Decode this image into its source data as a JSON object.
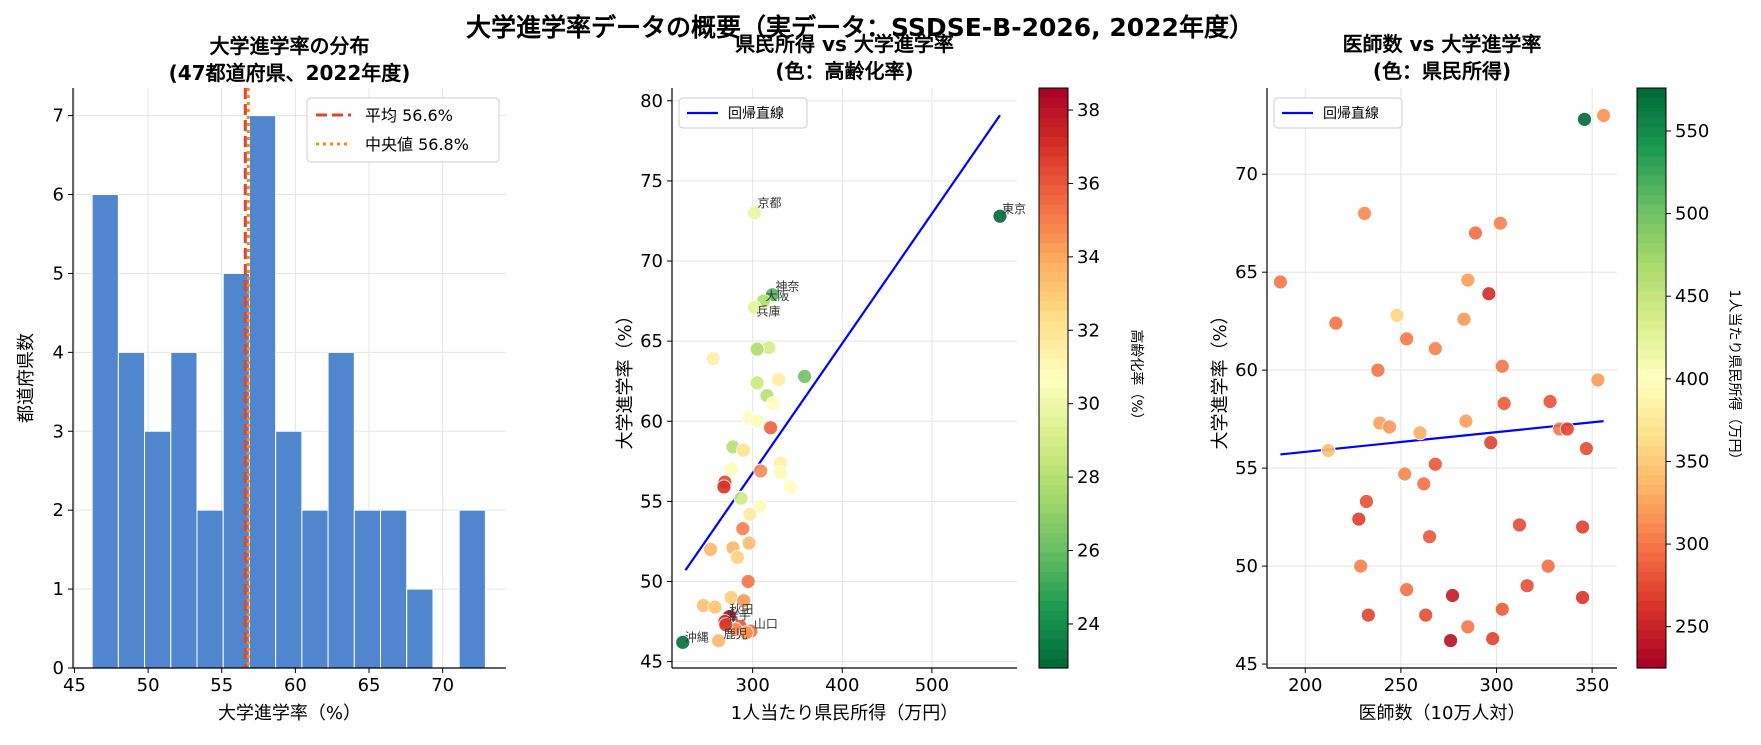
{
  "suptitle": "大学進学率データの概要（実データ：SSDSE-B-2026, 2022年度）",
  "colors": {
    "bar": "#4f86cd",
    "mean_line": "#e8412f",
    "median_line": "#ff8c00",
    "regression": "#0000ff"
  },
  "chart_data": [
    {
      "type": "bar",
      "title": "大学進学率の分布\n(47都道府県、2022年度)",
      "xlabel": "大学進学率（%）",
      "ylabel": "都道府県数",
      "xlim": [
        44.9,
        74.3
      ],
      "ylim": [
        0,
        7.35
      ],
      "xticks": [
        45,
        50,
        55,
        60,
        65,
        70
      ],
      "yticks": [
        0,
        1,
        2,
        3,
        4,
        5,
        6,
        7
      ],
      "bin_edges": [
        46.2,
        47.98,
        49.76,
        51.54,
        53.32,
        55.1,
        56.88,
        58.66,
        60.44,
        62.22,
        64.0,
        65.78,
        67.56,
        69.34,
        71.12,
        72.9
      ],
      "values": [
        6,
        4,
        3,
        4,
        2,
        5,
        7,
        3,
        2,
        4,
        2,
        2,
        1,
        0,
        2
      ],
      "mean": 56.6,
      "median": 56.8,
      "legend": [
        "平均 56.6%",
        "中央値 56.8%"
      ],
      "legend_position": "upper right",
      "grid": true
    },
    {
      "type": "scatter",
      "title": "県民所得 vs 大学進学率\n(色：高齢化率)",
      "xlabel": "1人当たり県民所得（万円）",
      "ylabel": "大学進学率（%）",
      "xlim": [
        210,
        595
      ],
      "ylim": [
        44.6,
        80.8
      ],
      "xticks": [
        300,
        400,
        500
      ],
      "yticks": [
        45,
        50,
        55,
        60,
        65,
        70,
        75,
        80
      ],
      "colorbar": {
        "label": "高齢化率（%）",
        "range": [
          22.8,
          38.6
        ],
        "ticks": [
          24,
          26,
          28,
          30,
          32,
          34,
          36,
          38
        ],
        "colormap": "RdYlGn_r"
      },
      "regression": {
        "label": "回帰直線",
        "x": [
          225,
          576
        ],
        "y": [
          50.7,
          79.1
        ]
      },
      "legend": [
        "回帰直線"
      ],
      "legend_position": "upper left",
      "grid": true,
      "points": [
        {
          "x": 576,
          "y": 72.8,
          "c": 22.8,
          "label": "東京"
        },
        {
          "x": 302,
          "y": 73.0,
          "c": 29.8,
          "label": "京都"
        },
        {
          "x": 322,
          "y": 67.9,
          "c": 25.6,
          "label": "神奈"
        },
        {
          "x": 312,
          "y": 67.5,
          "c": 27.8,
          "label": "大阪"
        },
        {
          "x": 302,
          "y": 67.1,
          "c": 29.5,
          "label": "兵庫"
        },
        {
          "x": 222,
          "y": 46.2,
          "c": 23.0,
          "label": "沖縄"
        },
        {
          "x": 262,
          "y": 46.3,
          "c": 33.6,
          "label": "鹿児"
        },
        {
          "x": 298,
          "y": 46.9,
          "c": 35.4,
          "label": "山口"
        },
        {
          "x": 274,
          "y": 47.8,
          "c": 38.4,
          "label": "秋田"
        },
        {
          "x": 269,
          "y": 47.5,
          "c": 37.2,
          "label": "岩手"
        },
        {
          "x": 256,
          "y": 63.9,
          "c": 31.5
        },
        {
          "x": 318,
          "y": 64.6,
          "c": 29.0
        },
        {
          "x": 305,
          "y": 64.5,
          "c": 27.8
        },
        {
          "x": 358,
          "y": 62.8,
          "c": 26.2
        },
        {
          "x": 329,
          "y": 62.6,
          "c": 31.6
        },
        {
          "x": 305,
          "y": 62.4,
          "c": 28.7
        },
        {
          "x": 316,
          "y": 61.6,
          "c": 28.0
        },
        {
          "x": 323,
          "y": 61.1,
          "c": 30.8
        },
        {
          "x": 296,
          "y": 60.2,
          "c": 30.6
        },
        {
          "x": 305,
          "y": 60.0,
          "c": 30.5
        },
        {
          "x": 320,
          "y": 59.6,
          "c": 35.8
        },
        {
          "x": 278,
          "y": 58.4,
          "c": 28.0
        },
        {
          "x": 290,
          "y": 58.2,
          "c": 32.1
        },
        {
          "x": 331,
          "y": 57.4,
          "c": 31.4
        },
        {
          "x": 276,
          "y": 57.0,
          "c": 30.5
        },
        {
          "x": 309,
          "y": 56.9,
          "c": 34.7
        },
        {
          "x": 331,
          "y": 56.8,
          "c": 31.0
        },
        {
          "x": 269,
          "y": 56.2,
          "c": 36.5
        },
        {
          "x": 268,
          "y": 55.9,
          "c": 37.0
        },
        {
          "x": 342,
          "y": 55.9,
          "c": 30.8
        },
        {
          "x": 287,
          "y": 55.2,
          "c": 28.8
        },
        {
          "x": 308,
          "y": 54.7,
          "c": 30.9
        },
        {
          "x": 297,
          "y": 54.2,
          "c": 31.8
        },
        {
          "x": 289,
          "y": 53.3,
          "c": 35.0
        },
        {
          "x": 296,
          "y": 52.4,
          "c": 33.4
        },
        {
          "x": 278,
          "y": 52.1,
          "c": 33.6
        },
        {
          "x": 253,
          "y": 52.0,
          "c": 33.5
        },
        {
          "x": 283,
          "y": 51.5,
          "c": 32.8
        },
        {
          "x": 295,
          "y": 50.0,
          "c": 35.3
        },
        {
          "x": 276,
          "y": 49.0,
          "c": 32.9
        },
        {
          "x": 290,
          "y": 48.8,
          "c": 34.4
        },
        {
          "x": 245,
          "y": 48.5,
          "c": 33.3
        },
        {
          "x": 258,
          "y": 48.4,
          "c": 33.2
        },
        {
          "x": 286,
          "y": 47.2,
          "c": 36.0
        },
        {
          "x": 281,
          "y": 47.0,
          "c": 34.7
        },
        {
          "x": 293,
          "y": 46.8,
          "c": 34.5
        },
        {
          "x": 270,
          "y": 47.3,
          "c": 36.8
        }
      ]
    },
    {
      "type": "scatter",
      "title": "医師数 vs 大学進学率\n(色：県民所得)",
      "xlabel": "医師数（10万人対）",
      "ylabel": "大学進学率（%）",
      "xlim": [
        180,
        363
      ],
      "ylim": [
        44.8,
        74.4
      ],
      "xticks": [
        200,
        250,
        300,
        350
      ],
      "yticks": [
        45,
        50,
        55,
        60,
        65,
        70
      ],
      "colorbar": {
        "label": "1人当たり県民所得（万円）",
        "range": [
          225,
          576
        ],
        "ticks": [
          250,
          300,
          350,
          400,
          450,
          500,
          550
        ],
        "colormap": "RdYlGn"
      },
      "regression": {
        "label": "回帰直線",
        "x": [
          187,
          356
        ],
        "y": [
          55.7,
          57.4
        ]
      },
      "legend": [
        "回帰直線"
      ],
      "legend_position": "upper left",
      "grid": true,
      "points": [
        {
          "x": 346,
          "y": 72.8,
          "c": 576
        },
        {
          "x": 356,
          "y": 73.0,
          "c": 315
        },
        {
          "x": 187,
          "y": 64.5,
          "c": 300
        },
        {
          "x": 231,
          "y": 68.0,
          "c": 310
        },
        {
          "x": 289,
          "y": 67.0,
          "c": 295
        },
        {
          "x": 302,
          "y": 67.5,
          "c": 305
        },
        {
          "x": 216,
          "y": 62.4,
          "c": 298
        },
        {
          "x": 296,
          "y": 63.9,
          "c": 256
        },
        {
          "x": 248,
          "y": 62.8,
          "c": 358
        },
        {
          "x": 285,
          "y": 64.6,
          "c": 322
        },
        {
          "x": 253,
          "y": 61.6,
          "c": 300
        },
        {
          "x": 283,
          "y": 62.6,
          "c": 318
        },
        {
          "x": 268,
          "y": 61.1,
          "c": 305
        },
        {
          "x": 238,
          "y": 60.0,
          "c": 298
        },
        {
          "x": 303,
          "y": 60.2,
          "c": 300
        },
        {
          "x": 353,
          "y": 59.5,
          "c": 320
        },
        {
          "x": 328,
          "y": 58.4,
          "c": 280
        },
        {
          "x": 304,
          "y": 58.3,
          "c": 285
        },
        {
          "x": 239,
          "y": 57.3,
          "c": 322
        },
        {
          "x": 244,
          "y": 57.1,
          "c": 318
        },
        {
          "x": 260,
          "y": 56.8,
          "c": 330
        },
        {
          "x": 284,
          "y": 57.4,
          "c": 322
        },
        {
          "x": 297,
          "y": 56.3,
          "c": 270
        },
        {
          "x": 333,
          "y": 57.0,
          "c": 300
        },
        {
          "x": 337,
          "y": 57.0,
          "c": 272
        },
        {
          "x": 212,
          "y": 55.9,
          "c": 342
        },
        {
          "x": 347,
          "y": 56.0,
          "c": 276
        },
        {
          "x": 252,
          "y": 54.7,
          "c": 308
        },
        {
          "x": 268,
          "y": 55.2,
          "c": 282
        },
        {
          "x": 262,
          "y": 54.2,
          "c": 297
        },
        {
          "x": 232,
          "y": 53.3,
          "c": 278
        },
        {
          "x": 228,
          "y": 52.4,
          "c": 268
        },
        {
          "x": 312,
          "y": 52.1,
          "c": 276
        },
        {
          "x": 345,
          "y": 52.0,
          "c": 269
        },
        {
          "x": 265,
          "y": 51.5,
          "c": 283
        },
        {
          "x": 229,
          "y": 50.0,
          "c": 305
        },
        {
          "x": 327,
          "y": 50.0,
          "c": 295
        },
        {
          "x": 316,
          "y": 49.0,
          "c": 278
        },
        {
          "x": 253,
          "y": 48.8,
          "c": 297
        },
        {
          "x": 277,
          "y": 48.5,
          "c": 245
        },
        {
          "x": 345,
          "y": 48.4,
          "c": 262
        },
        {
          "x": 233,
          "y": 47.5,
          "c": 270
        },
        {
          "x": 263,
          "y": 47.5,
          "c": 276
        },
        {
          "x": 303,
          "y": 47.8,
          "c": 284
        },
        {
          "x": 285,
          "y": 46.9,
          "c": 300
        },
        {
          "x": 276,
          "y": 46.2,
          "c": 236
        },
        {
          "x": 298,
          "y": 46.3,
          "c": 270
        }
      ]
    }
  ]
}
